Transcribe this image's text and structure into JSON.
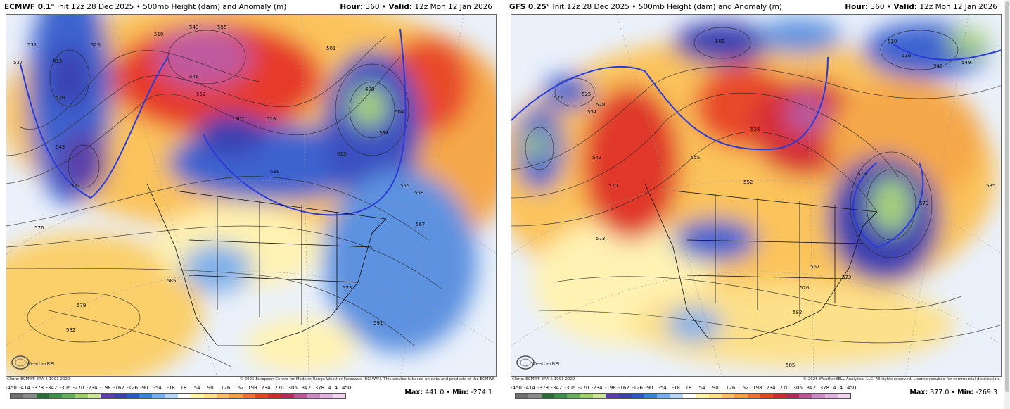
{
  "panels": [
    {
      "model": "ECMWF 0.1°",
      "init": "Init 12z 28 Dec 2025",
      "product": "500mb Height (dam) and Anomaly (m)",
      "hour_label": "Hour:",
      "hour": "360",
      "valid_label": "Valid:",
      "valid": "12z Mon 12 Jan 2026",
      "climo": "Climo: ECMWF ERA-5 1991-2020",
      "copyright": "© 2025 European Centre for Medium-Range Weather Forecasts (ECMWF). This service is based on data and products of the ECMWF.",
      "max_label": "Max:",
      "max": "441.0",
      "min_label": "Min:",
      "min": "-274.1",
      "logo_text": "WeatherBELL",
      "contour_labels": [
        "576",
        "579",
        "585",
        "582",
        "561",
        "543",
        "528",
        "513",
        "537",
        "531",
        "525",
        "510",
        "549",
        "555",
        "546",
        "552",
        "507",
        "519",
        "516",
        "513",
        "534",
        "555",
        "558",
        "567",
        "573",
        "591",
        "498",
        "504",
        "501"
      ]
    },
    {
      "model": "GFS 0.25°",
      "init": "Init 12z 28 Dec 2025",
      "product": "500mb Height (dam) and Anomaly (m)",
      "hour_label": "Hour:",
      "hour": "360",
      "valid_label": "Valid:",
      "valid": "12z Mon 12 Jan 2026",
      "climo": "Climo: ECMWF ERA-5 1991-2020",
      "copyright": "© 2025 WeatherBELL Analytics, LLC. All rights reserved. License required for commercial distribution.",
      "max_label": "Max:",
      "max": "377.0",
      "min_label": "Min:",
      "min": "-269.3",
      "logo_text": "WeatherBELL",
      "contour_labels": [
        "522",
        "525",
        "528",
        "534",
        "543",
        "570",
        "573",
        "555",
        "552",
        "528",
        "567",
        "573",
        "576",
        "582",
        "585",
        "579",
        "585",
        "510",
        "516",
        "513",
        "501",
        "540",
        "549"
      ]
    }
  ],
  "scale": {
    "labels": [
      "-450",
      "-414",
      "-378",
      "-342",
      "-306",
      "-270",
      "-234",
      "-198",
      "-162",
      "-126",
      "-90",
      "-54",
      "-18",
      "18",
      "54",
      "90",
      "126",
      "162",
      "198",
      "234",
      "270",
      "306",
      "342",
      "378",
      "414",
      "450"
    ],
    "colors": [
      "#6e6e6e",
      "#8a8a8a",
      "#2e6b3a",
      "#3f8b4b",
      "#67ad5d",
      "#9fcd6f",
      "#cde59b",
      "#5b40a8",
      "#3b3fb0",
      "#2c56c9",
      "#3d7fdd",
      "#79aee9",
      "#b8d6f3",
      "#ffffff",
      "#fff3b0",
      "#fde08a",
      "#fbc05e",
      "#f89c40",
      "#f0702c",
      "#e3442a",
      "#cf2a2e",
      "#b7295a",
      "#b45b95",
      "#c98bc2",
      "#ddb3dd",
      "#efd7ef"
    ],
    "units": "m"
  }
}
